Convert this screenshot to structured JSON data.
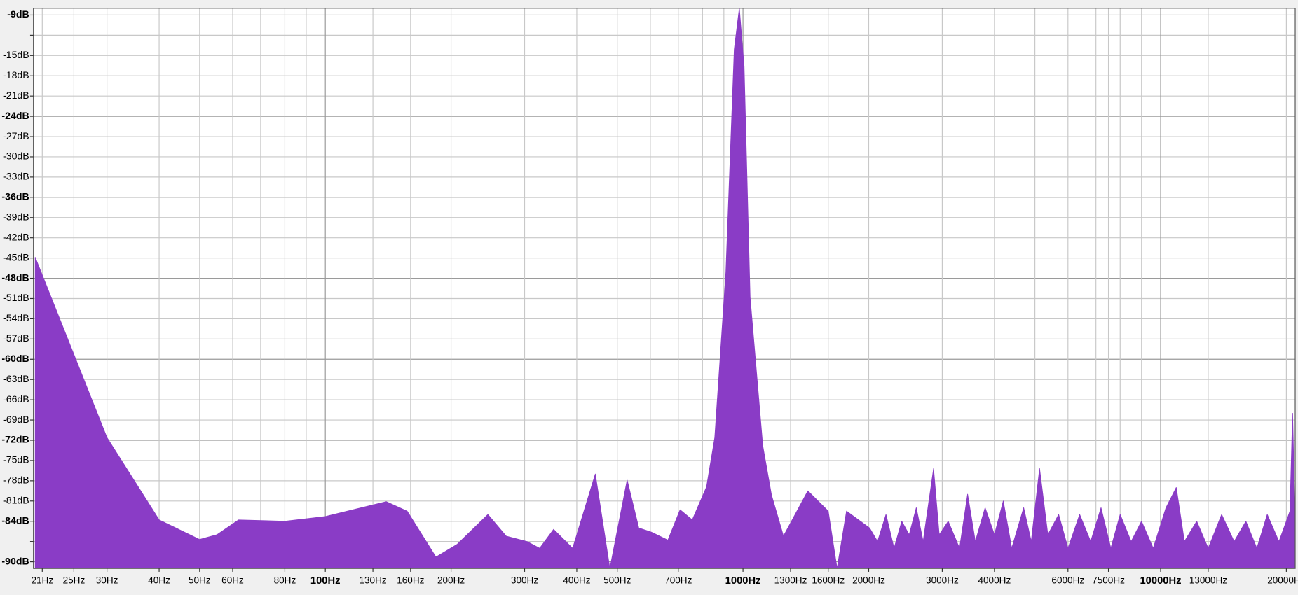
{
  "chart_data": {
    "type": "area",
    "log_x": true,
    "grid": true,
    "color": "#8a3cc6",
    "xlim": [
      20,
      21000
    ],
    "ylim": [
      -91,
      -8
    ],
    "xticks": [
      {
        "value": 21,
        "label": "21Hz"
      },
      {
        "value": 25,
        "label": "25Hz"
      },
      {
        "value": 30,
        "label": "30Hz"
      },
      {
        "value": 40,
        "label": "40Hz"
      },
      {
        "value": 50,
        "label": "50Hz"
      },
      {
        "value": 60,
        "label": "60Hz"
      },
      {
        "value": 80,
        "label": "80Hz"
      },
      {
        "value": 100,
        "label": "100Hz",
        "bold": true
      },
      {
        "value": 130,
        "label": "130Hz"
      },
      {
        "value": 160,
        "label": "160Hz"
      },
      {
        "value": 200,
        "label": "200Hz"
      },
      {
        "value": 300,
        "label": "300Hz"
      },
      {
        "value": 400,
        "label": "400Hz"
      },
      {
        "value": 500,
        "label": "500Hz"
      },
      {
        "value": 700,
        "label": "700Hz"
      },
      {
        "value": 1000,
        "label": "1000Hz",
        "bold": true
      },
      {
        "value": 1300,
        "label": "1300Hz"
      },
      {
        "value": 1600,
        "label": "1600Hz"
      },
      {
        "value": 2000,
        "label": "2000Hz"
      },
      {
        "value": 3000,
        "label": "3000Hz"
      },
      {
        "value": 4000,
        "label": "4000Hz"
      },
      {
        "value": 6000,
        "label": "6000Hz"
      },
      {
        "value": 7500,
        "label": "7500Hz"
      },
      {
        "value": 10000,
        "label": "10000Hz",
        "bold": true
      },
      {
        "value": 13000,
        "label": "13000Hz"
      },
      {
        "value": 20000,
        "label": "20000Hz"
      }
    ],
    "minor_xticks": [
      70,
      90,
      600,
      800,
      900,
      5000,
      7000,
      8000,
      9000
    ],
    "yticks": [
      {
        "value": -9,
        "label": "-9dB",
        "bold": true
      },
      {
        "value": -15,
        "label": "-15dB"
      },
      {
        "value": -18,
        "label": "-18dB"
      },
      {
        "value": -21,
        "label": "-21dB"
      },
      {
        "value": -24,
        "label": "-24dB",
        "bold": true
      },
      {
        "value": -27,
        "label": "-27dB"
      },
      {
        "value": -30,
        "label": "-30dB"
      },
      {
        "value": -33,
        "label": "-33dB"
      },
      {
        "value": -36,
        "label": "-36dB",
        "bold": true
      },
      {
        "value": -39,
        "label": "-39dB"
      },
      {
        "value": -42,
        "label": "-42dB"
      },
      {
        "value": -45,
        "label": "-45dB"
      },
      {
        "value": -48,
        "label": "-48dB",
        "bold": true
      },
      {
        "value": -51,
        "label": "-51dB"
      },
      {
        "value": -54,
        "label": "-54dB"
      },
      {
        "value": -57,
        "label": "-57dB"
      },
      {
        "value": -60,
        "label": "-60dB",
        "bold": true
      },
      {
        "value": -63,
        "label": "-63dB"
      },
      {
        "value": -66,
        "label": "-66dB"
      },
      {
        "value": -69,
        "label": "-69dB"
      },
      {
        "value": -72,
        "label": "-72dB",
        "bold": true
      },
      {
        "value": -75,
        "label": "-75dB"
      },
      {
        "value": -78,
        "label": "-78dB"
      },
      {
        "value": -81,
        "label": "-81dB"
      },
      {
        "value": -84,
        "label": "-84dB",
        "bold": true
      },
      {
        "value": -90,
        "label": "-90dB",
        "bold": true
      }
    ],
    "minor_yticks": [
      -12,
      -87
    ],
    "x": [
      20.2,
      30,
      40,
      50,
      55,
      62,
      80,
      100,
      140,
      157,
      184,
      207,
      245,
      271,
      304,
      326,
      352,
      391,
      443,
      480,
      528,
      563,
      603,
      661,
      707,
      756,
      818,
      856,
      910,
      953,
      980,
      1006,
      1040,
      1115,
      1170,
      1250,
      1430,
      1600,
      1680,
      1770,
      2010,
      2100,
      2200,
      2300,
      2400,
      2500,
      2600,
      2700,
      2860,
      2950,
      3100,
      3300,
      3450,
      3600,
      3800,
      4000,
      4200,
      4400,
      4700,
      4900,
      5130,
      5370,
      5700,
      6000,
      6400,
      6800,
      7200,
      7600,
      8000,
      8500,
      9000,
      9600,
      10300,
      10900,
      11400,
      12200,
      13000,
      14000,
      15000,
      16000,
      17000,
      18000,
      19200,
      20000,
      20400,
      20700,
      21000
    ],
    "values": [
      -44.9,
      -71.6,
      -83.8,
      -86.7,
      -86,
      -83.8,
      -84,
      -83.3,
      -81.1,
      -82.5,
      -89.3,
      -87.4,
      -83,
      -86.2,
      -87,
      -88,
      -85.2,
      -88,
      -77,
      -91,
      -77.9,
      -85,
      -85.6,
      -86.8,
      -82.3,
      -83.8,
      -78.9,
      -71.6,
      -47.1,
      -14.1,
      -8,
      -16.6,
      -50.8,
      -72.8,
      -80.1,
      -86.2,
      -79.5,
      -82.5,
      -91,
      -82.5,
      -85,
      -87,
      -83,
      -88,
      -84,
      -86,
      -82,
      -87,
      -76.2,
      -86,
      -84,
      -88,
      -80,
      -87,
      -82,
      -86,
      -81,
      -88,
      -82,
      -87,
      -76.2,
      -86,
      -83,
      -88,
      -83,
      -87,
      -82,
      -88,
      -83,
      -87,
      -84,
      -88,
      -82,
      -79,
      -87,
      -84,
      -88,
      -83,
      -87,
      -84,
      -88,
      -83,
      -87,
      -84,
      -82.5,
      -68,
      -85
    ]
  }
}
